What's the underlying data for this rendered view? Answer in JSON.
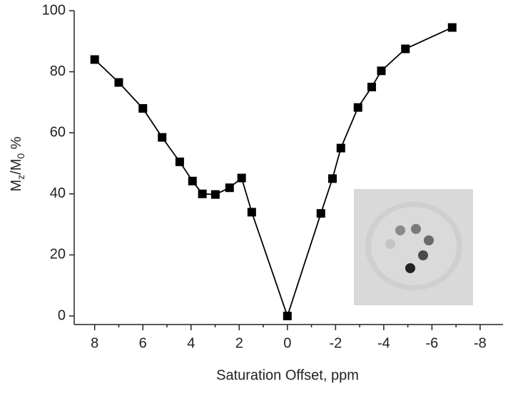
{
  "chart_data": {
    "type": "line",
    "xlabel": "Saturation Offset, ppm",
    "ylabel": [
      "M",
      "z",
      "/M",
      "0",
      " %"
    ],
    "x": [
      8.0,
      7.0,
      6.0,
      5.2,
      4.47,
      3.94,
      3.53,
      2.99,
      2.4,
      1.9,
      1.48,
      0,
      -1.39,
      -1.87,
      -2.22,
      -2.93,
      -3.5,
      -3.9,
      -4.9,
      -6.84
    ],
    "series": [
      {
        "color": "#000000",
        "values": [
          84,
          76.5,
          68,
          58.5,
          50.5,
          44.2,
          40,
          39.8,
          42,
          45.2,
          34,
          0,
          33.6,
          45,
          55,
          68.3,
          75,
          80.3,
          87.5,
          94.5
        ]
      }
    ],
    "xlim": [
      8.85,
      -8.95
    ],
    "xticks": [
      8,
      6,
      4,
      2,
      0,
      -2,
      -4,
      -6,
      -8
    ],
    "xminorticks": [
      7,
      5,
      3,
      1,
      -1,
      -3,
      -5,
      -7
    ],
    "ylim": [
      -2.8,
      100
    ],
    "yticks": [
      0,
      20,
      40,
      60,
      80,
      100
    ]
  }
}
